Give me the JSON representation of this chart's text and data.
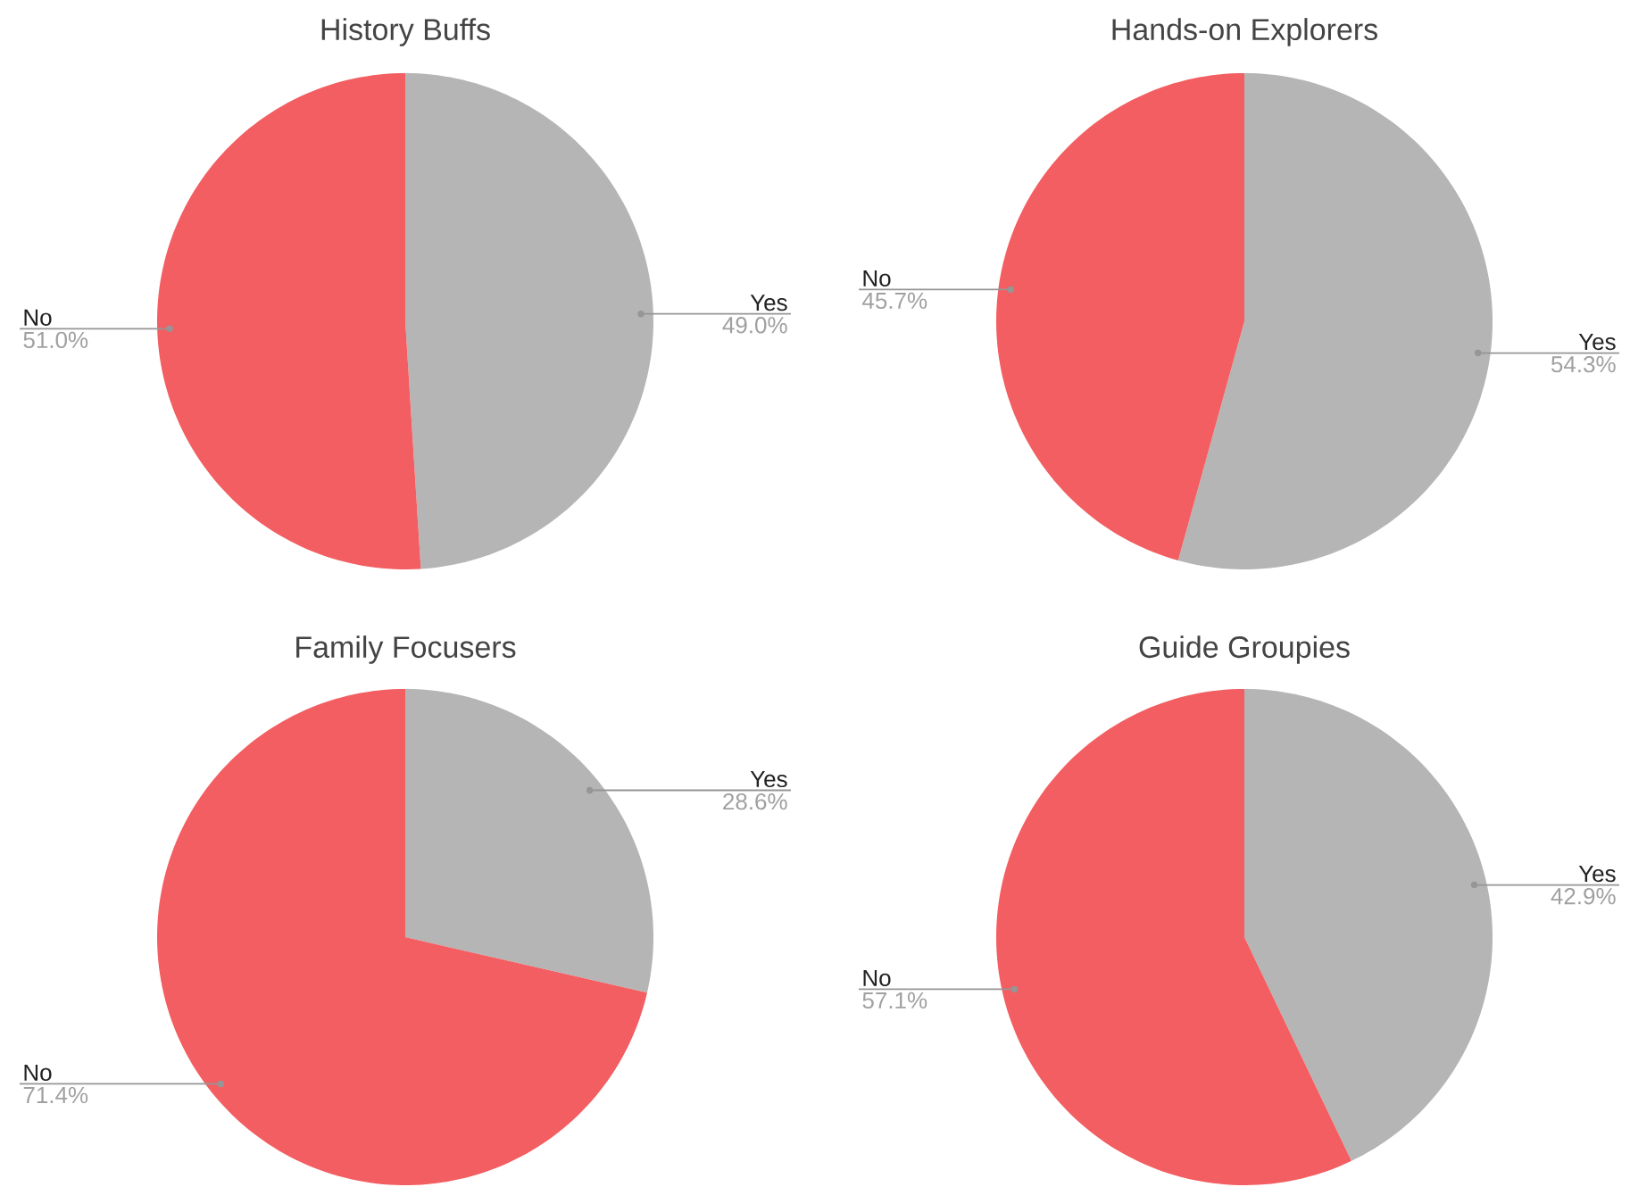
{
  "chart_data": [
    {
      "type": "pie",
      "title": "History Buffs",
      "categories": [
        "Yes",
        "No"
      ],
      "values": [
        49.0,
        51.0
      ],
      "colors": [
        "#b5b5b5",
        "#f25e61"
      ],
      "value_labels": [
        "49.0%",
        "51.0%"
      ]
    },
    {
      "type": "pie",
      "title": "Hands-on Explorers",
      "categories": [
        "Yes",
        "No"
      ],
      "values": [
        54.3,
        45.7
      ],
      "colors": [
        "#b5b5b5",
        "#f25e61"
      ],
      "value_labels": [
        "54.3%",
        "45.7%"
      ]
    },
    {
      "type": "pie",
      "title": "Family Focusers",
      "categories": [
        "Yes",
        "No"
      ],
      "values": [
        28.6,
        71.4
      ],
      "colors": [
        "#b5b5b5",
        "#f25e61"
      ],
      "value_labels": [
        "28.6%",
        "71.4%"
      ]
    },
    {
      "type": "pie",
      "title": "Guide Groupies",
      "categories": [
        "Yes",
        "No"
      ],
      "values": [
        42.9,
        57.1
      ],
      "colors": [
        "#b5b5b5",
        "#f25e61"
      ],
      "value_labels": [
        "42.9%",
        "57.1%"
      ]
    }
  ]
}
